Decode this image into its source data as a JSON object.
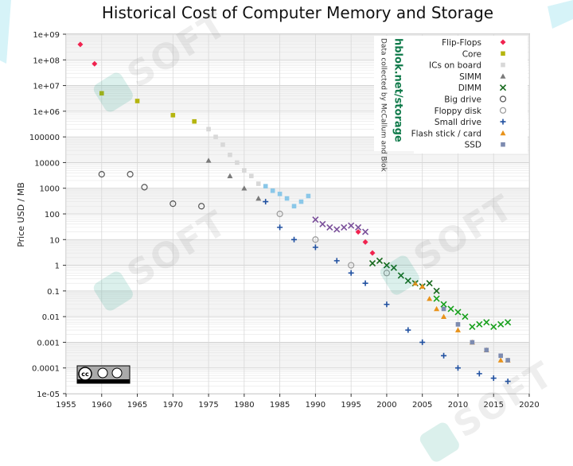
{
  "slide": {
    "corner_color": "#d6f3f8"
  },
  "chart_data": {
    "type": "scatter",
    "title": "Historical Cost of Computer Memory and Storage",
    "ylabel": "Price USD / MB",
    "xlabel": "",
    "xlim": [
      1955,
      2020
    ],
    "ylim": [
      1e-05,
      1000000000
    ],
    "y_scale": "log",
    "grid": true,
    "legend_position": "top-right",
    "x_ticks": [
      "1955",
      "1960",
      "1965",
      "1970",
      "1975",
      "1980",
      "1985",
      "1990",
      "1995",
      "2000",
      "2005",
      "2010",
      "2015",
      "2020"
    ],
    "y_ticks": [
      "1e+09",
      "1e+08",
      "1e+07",
      "1e+06",
      "100000",
      "10000",
      "1000",
      "100",
      "10",
      "1",
      "0.1",
      "0.01",
      "0.001",
      "0.0001",
      "1e-05"
    ],
    "source_title": "hblok.net/storage",
    "source_credit": "Data collected by McCallum and Blok",
    "license_badge": "cc by sa",
    "series": [
      {
        "name": "Flip-Flops",
        "color": "#f0234f",
        "marker": "diamond",
        "x": [
          1957,
          1959
        ],
        "y": [
          400000000,
          70000000
        ]
      },
      {
        "name": "Core",
        "color": "#b5b50f",
        "marker": "square",
        "x": [
          1960,
          1965,
          1970,
          1973
        ],
        "y": [
          5000000,
          2500000,
          700000,
          400000
        ]
      },
      {
        "name": "ICs on board",
        "color": "#d8d8d8",
        "marker": "square",
        "x": [
          1975,
          1976,
          1977,
          1978,
          1979,
          1980,
          1981,
          1982
        ],
        "y": [
          200000,
          100000,
          50000,
          20000,
          10000,
          5000,
          3000,
          1500
        ]
      },
      {
        "name": "SIMM",
        "color": "#7a7a7a",
        "marker": "triangle",
        "x": [
          1975,
          1978,
          1980,
          1982
        ],
        "y": [
          12000,
          3000,
          1000,
          400
        ]
      },
      {
        "name": "DIMM",
        "color": "#15681b",
        "marker": "x",
        "x": [
          1998,
          1999,
          2000,
          2001,
          2002,
          2003,
          2004,
          2005,
          2006,
          2007
        ],
        "y": [
          1.2,
          1.5,
          1.0,
          0.8,
          0.4,
          0.25,
          0.2,
          0.15,
          0.2,
          0.1
        ]
      },
      {
        "name": "Big drive",
        "color": "#555555",
        "marker": "circle-open",
        "x": [
          1960,
          1964,
          1966,
          1970,
          1974
        ],
        "y": [
          3500,
          3500,
          1100,
          250,
          200
        ]
      },
      {
        "name": "Floppy disk",
        "color": "#9a9a9a",
        "marker": "circle-open",
        "x": [
          1985,
          1990,
          1995,
          2000
        ],
        "y": [
          100,
          10,
          1,
          0.5
        ]
      },
      {
        "name": "Small drive",
        "color": "#2050a0",
        "marker": "plus",
        "x": [
          1983,
          1985,
          1987,
          1990,
          1993,
          1995,
          1997,
          2000,
          2003,
          2005,
          2008,
          2010,
          2013,
          2015,
          2017
        ],
        "y": [
          300,
          30,
          10,
          5,
          1.5,
          0.5,
          0.2,
          0.03,
          0.003,
          0.001,
          0.0003,
          0.0001,
          6e-05,
          4e-05,
          3e-05
        ]
      },
      {
        "name": "Flash stick / card",
        "color": "#e8921a",
        "marker": "triangle",
        "x": [
          2004,
          2005,
          2006,
          2007,
          2008,
          2010,
          2012,
          2014,
          2016,
          2017
        ],
        "y": [
          0.2,
          0.15,
          0.05,
          0.02,
          0.01,
          0.003,
          0.001,
          0.0005,
          0.0002,
          0.0002
        ]
      },
      {
        "name": "SSD",
        "color": "#7d8bb0",
        "marker": "square",
        "x": [
          2008,
          2010,
          2012,
          2014,
          2016,
          2017
        ],
        "y": [
          0.02,
          0.005,
          0.001,
          0.0005,
          0.0003,
          0.0002
        ]
      },
      {
        "name": "",
        "color": "#f0234f",
        "marker": "diamond",
        "x": [
          1996,
          1997,
          1998
        ],
        "y": [
          20,
          8,
          3
        ]
      },
      {
        "name": "",
        "color": "#7a4f9a",
        "marker": "x",
        "x": [
          1990,
          1991,
          1992,
          1993,
          1994,
          1995,
          1996,
          1997
        ],
        "y": [
          60,
          40,
          30,
          25,
          30,
          35,
          30,
          20
        ]
      },
      {
        "name": "",
        "color": "#17a01c",
        "marker": "x",
        "x": [
          2007,
          2008,
          2009,
          2010,
          2011,
          2012,
          2013,
          2014,
          2015,
          2016,
          2017
        ],
        "y": [
          0.05,
          0.03,
          0.02,
          0.015,
          0.01,
          0.004,
          0.005,
          0.006,
          0.004,
          0.005,
          0.006
        ]
      },
      {
        "name": "",
        "color": "#8ac7e8",
        "marker": "square",
        "x": [
          1983,
          1984,
          1985,
          1986,
          1987,
          1988,
          1989
        ],
        "y": [
          1200,
          800,
          600,
          400,
          200,
          300,
          500
        ]
      }
    ]
  }
}
